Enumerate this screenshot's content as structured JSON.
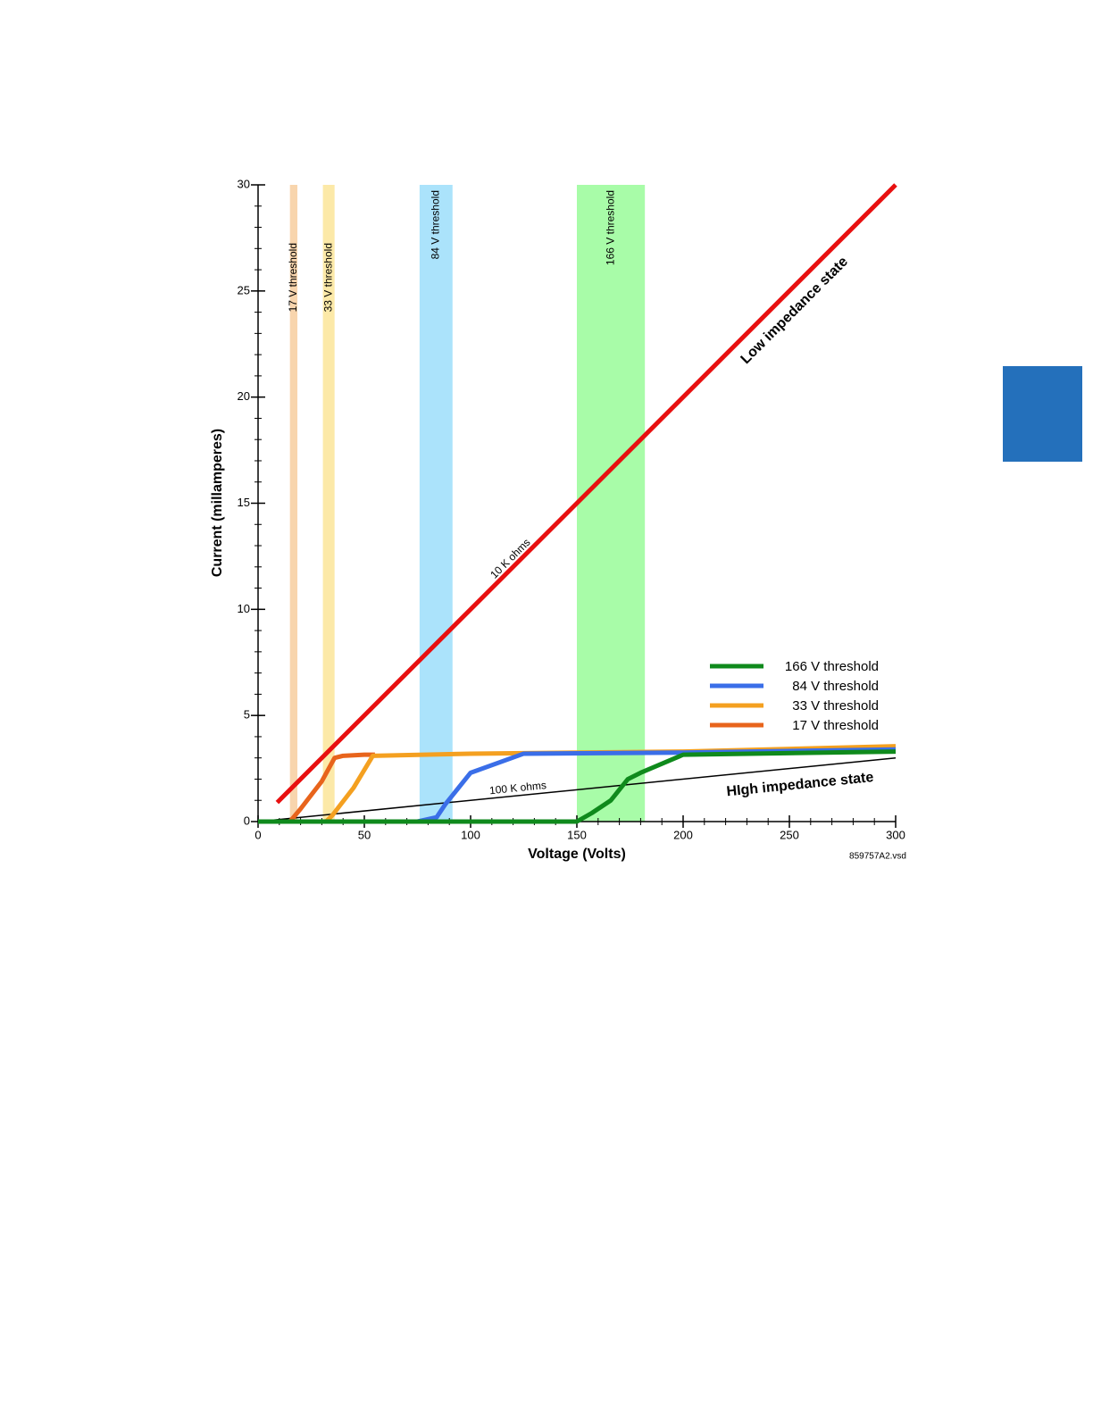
{
  "chart_data": {
    "type": "line",
    "xlabel": "Voltage (Volts)",
    "ylabel": "Current (millamperes)",
    "xlim": [
      0,
      300
    ],
    "xticks": [
      0,
      50,
      100,
      150,
      200,
      250,
      300
    ],
    "x_minor_step": 10,
    "ylim": [
      0,
      30
    ],
    "yticks": [
      0,
      5,
      10,
      15,
      20,
      25,
      30
    ],
    "y_minor_step": 1,
    "bands": [
      {
        "label": "17 V threshold",
        "from": 15,
        "to": 18.5,
        "color": "#f8d5ad"
      },
      {
        "label": "33 V threshold",
        "from": 30.5,
        "to": 36,
        "color": "#fce9a8"
      },
      {
        "label": "84 V threshold",
        "from": 76,
        "to": 91.5,
        "color": "#abe3fb"
      },
      {
        "label": "166 V threshold",
        "from": 150,
        "to": 182,
        "color": "#a8fca8"
      }
    ],
    "reference_lines": [
      {
        "label": "10 K ohms",
        "color": "#e81010",
        "x": [
          9,
          300
        ],
        "values": [
          0.9,
          30
        ]
      },
      {
        "label": "100 K ohms",
        "color": "#000000",
        "x": [
          0,
          300
        ],
        "values": [
          0,
          3
        ]
      }
    ],
    "series": [
      {
        "name": "166 V threshold",
        "color": "#0f8a1c",
        "x": [
          0,
          150,
          157,
          166,
          170,
          174,
          180,
          200,
          300
        ],
        "values": [
          0,
          0,
          0.4,
          1.0,
          1.5,
          2.0,
          2.3,
          3.15,
          3.3
        ]
      },
      {
        "name": "84 V threshold",
        "color": "#3a6ee8",
        "x": [
          0,
          75,
          84,
          88,
          100,
          125,
          200,
          300
        ],
        "values": [
          0,
          0,
          0.2,
          0.8,
          2.3,
          3.2,
          3.25,
          3.4
        ]
      },
      {
        "name": "33 V threshold",
        "color": "#f4a020",
        "x": [
          0,
          32,
          35,
          45,
          54,
          100,
          200,
          300
        ],
        "values": [
          0,
          0,
          0.3,
          1.6,
          3.1,
          3.2,
          3.3,
          3.55
        ]
      },
      {
        "name": "17 V threshold",
        "color": "#e8641c",
        "x": [
          0,
          15,
          20,
          30,
          36,
          40,
          50,
          55
        ],
        "values": [
          0,
          0,
          0.6,
          1.9,
          3.0,
          3.1,
          3.15,
          3.15
        ]
      }
    ],
    "legend": "lower right",
    "annotations": [
      "Low impedance state",
      "HIgh impedance state"
    ],
    "footnote": "859757A2.vsd"
  }
}
